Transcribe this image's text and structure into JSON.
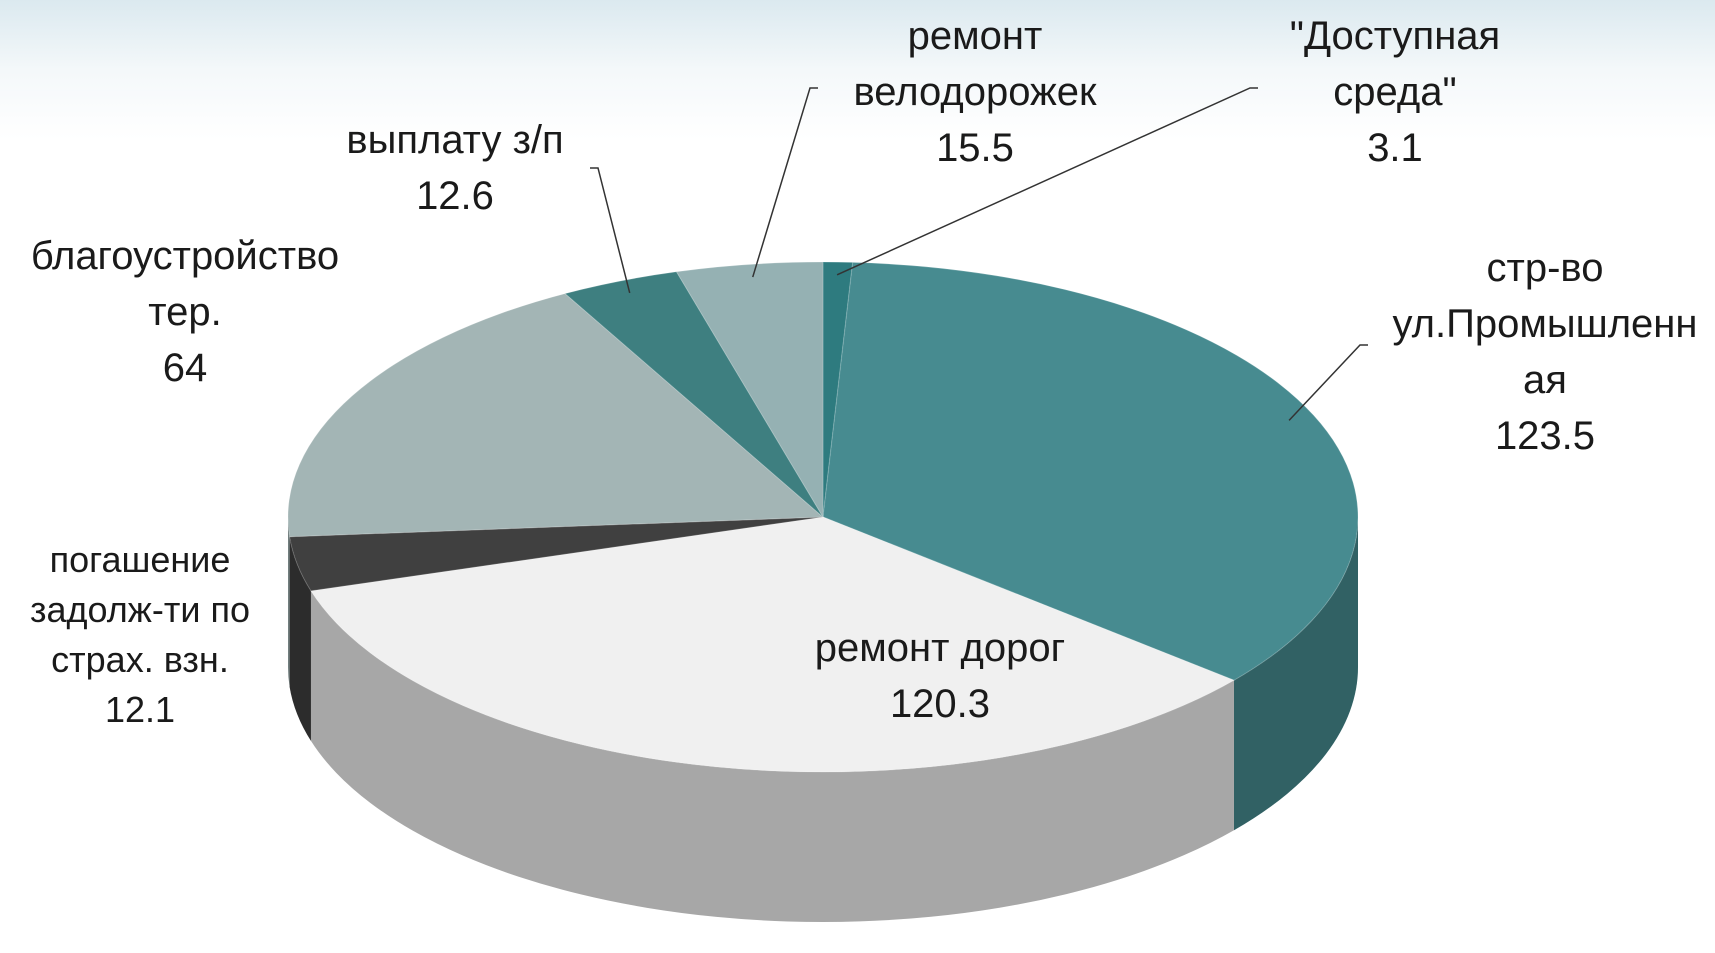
{
  "chart_data": {
    "type": "pie",
    "categories": [
      "\"Доступная среда\"",
      "стр-во ул.Промышленная",
      "ремонт дорог",
      "погашение задолж-ти по страх. взн.",
      "благоустройство тер.",
      "выплату з/п",
      "ремонт велодорожек"
    ],
    "values": [
      3.1,
      123.5,
      120.3,
      12.1,
      64,
      12.6,
      15.5
    ],
    "colors": [
      "#2e7b7f",
      "#478b90",
      "#f0f0f0",
      "#404040",
      "#a3b5b5",
      "#3e7f80",
      "#95b1b3"
    ]
  }
}
